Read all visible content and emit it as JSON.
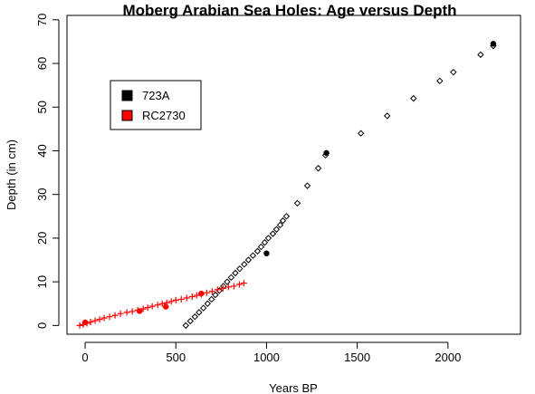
{
  "chart_data": {
    "type": "scatter",
    "title": "Moberg Arabian Sea Holes: Age versus Depth",
    "xlabel": "Years BP",
    "ylabel": "Depth (in cm)",
    "xlim": [
      -100,
      2400
    ],
    "ylim": [
      -2,
      71
    ],
    "x_ticks": [
      0,
      500,
      1000,
      1500,
      2000
    ],
    "y_ticks": [
      0,
      10,
      20,
      30,
      40,
      50,
      60,
      70
    ],
    "grid": false,
    "legend_position": "top-left",
    "legend": [
      {
        "label": "723A",
        "color": "#000000"
      },
      {
        "label": "RC2730",
        "color": "#ff0000"
      }
    ],
    "series": [
      {
        "name": "723A",
        "marker": "open-diamond",
        "color": "#000000",
        "points": [
          [
            555,
            0
          ],
          [
            580,
            1
          ],
          [
            605,
            2
          ],
          [
            628,
            3
          ],
          [
            652,
            4
          ],
          [
            675,
            5
          ],
          [
            697,
            6
          ],
          [
            718,
            7
          ],
          [
            740,
            8
          ],
          [
            762,
            9
          ],
          [
            783,
            10
          ],
          [
            805,
            11
          ],
          [
            828,
            12
          ],
          [
            852,
            13
          ],
          [
            877,
            14
          ],
          [
            900,
            15
          ],
          [
            925,
            16
          ],
          [
            950,
            17
          ],
          [
            970,
            18
          ],
          [
            990,
            19
          ],
          [
            1010,
            20
          ],
          [
            1035,
            21
          ],
          [
            1055,
            22
          ],
          [
            1075,
            23
          ],
          [
            1090,
            24
          ],
          [
            1110,
            25
          ],
          [
            1170,
            28
          ],
          [
            1225,
            32
          ],
          [
            1285,
            36
          ],
          [
            1325,
            39
          ],
          [
            1520,
            44
          ],
          [
            1665,
            48
          ],
          [
            1810,
            52
          ],
          [
            1955,
            56
          ],
          [
            2030,
            58
          ],
          [
            2180,
            62
          ],
          [
            2250,
            64
          ]
        ]
      },
      {
        "name": "723A",
        "marker": "filled-circle",
        "color": "#000000",
        "points": [
          [
            1000,
            16.5
          ],
          [
            1330,
            39.5
          ],
          [
            2250,
            64.5
          ]
        ]
      },
      {
        "name": "RC2730",
        "marker": "plus",
        "color": "#ff0000",
        "points": [
          [
            -30,
            0
          ],
          [
            -10,
            0.2
          ],
          [
            10,
            0.5
          ],
          [
            30,
            0.8
          ],
          [
            55,
            1.1
          ],
          [
            80,
            1.4
          ],
          [
            105,
            1.7
          ],
          [
            135,
            2.0
          ],
          [
            165,
            2.3
          ],
          [
            195,
            2.7
          ],
          [
            230,
            3.0
          ],
          [
            260,
            3.2
          ],
          [
            290,
            3.5
          ],
          [
            320,
            3.8
          ],
          [
            345,
            4.1
          ],
          [
            370,
            4.4
          ],
          [
            400,
            4.7
          ],
          [
            425,
            5.0
          ],
          [
            450,
            5.2
          ],
          [
            475,
            5.5
          ],
          [
            500,
            5.8
          ],
          [
            530,
            6.0
          ],
          [
            560,
            6.3
          ],
          [
            590,
            6.6
          ],
          [
            615,
            6.9
          ],
          [
            640,
            7.1
          ],
          [
            670,
            7.5
          ],
          [
            700,
            7.8
          ],
          [
            730,
            8.2
          ],
          [
            760,
            8.5
          ],
          [
            790,
            8.8
          ],
          [
            820,
            9.0
          ],
          [
            850,
            9.4
          ],
          [
            875,
            9.7
          ]
        ]
      },
      {
        "name": "RC2730",
        "marker": "filled-circle",
        "color": "#ff0000",
        "points": [
          [
            0,
            0.7
          ],
          [
            300,
            3.3
          ],
          [
            445,
            4.3
          ],
          [
            640,
            7.3
          ]
        ]
      }
    ]
  }
}
